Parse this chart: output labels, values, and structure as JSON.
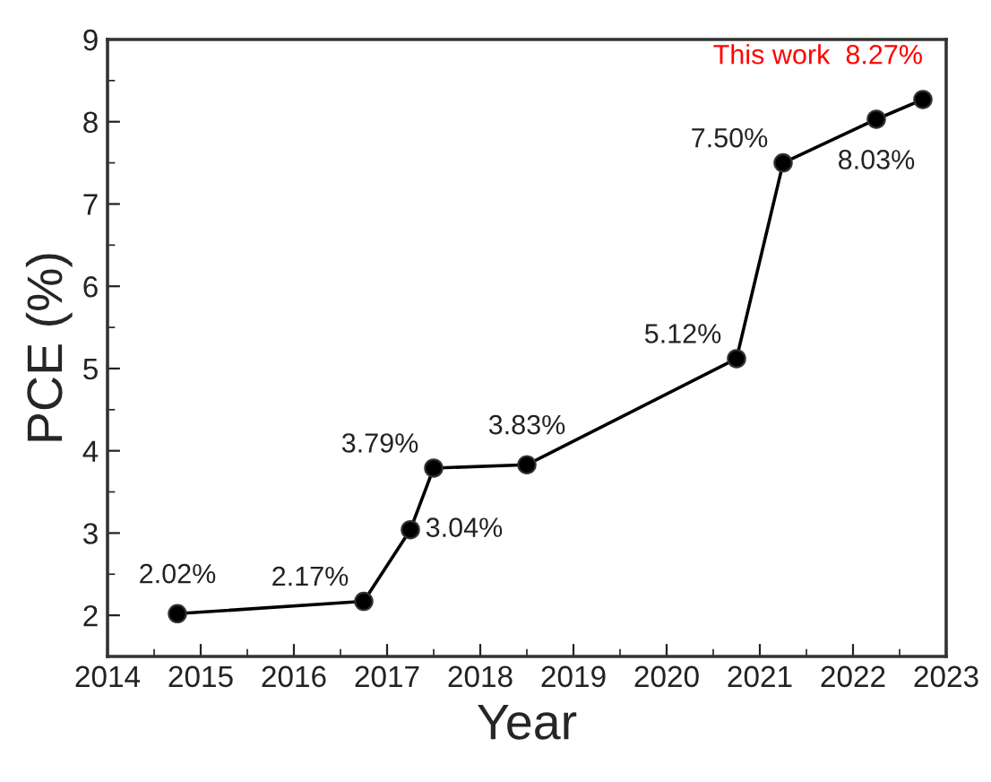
{
  "chart_data": {
    "type": "line",
    "xlabel": "Year",
    "ylabel": "PCE (%)",
    "x": [
      2014.75,
      2016.75,
      2017.25,
      2017.5,
      2018.5,
      2020.75,
      2021.25,
      2022.25,
      2022.75
    ],
    "series": [
      {
        "color": "#000000",
        "values": [
          2.02,
          2.17,
          3.04,
          3.79,
          3.83,
          5.12,
          7.5,
          8.03,
          8.27
        ],
        "value_labels": [
          "2.02%",
          "2.17%",
          "3.04%",
          "3.79%",
          "3.83%",
          "5.12%",
          "7.50%",
          "8.03%",
          null
        ]
      }
    ],
    "annotations": [
      {
        "text": "This work  8.27%",
        "x": 2022.75,
        "y": 8.27
      }
    ],
    "xlim": [
      2014,
      2023
    ],
    "xticks": [
      2014,
      2015,
      2016,
      2017,
      2018,
      2019,
      2020,
      2021,
      2022,
      2023
    ],
    "ylim": [
      1.5,
      9
    ],
    "yticks": [
      2,
      3,
      4,
      5,
      6,
      7,
      8,
      9
    ],
    "marker": "circle",
    "line_style": "solid",
    "grid": false,
    "legend": false
  }
}
